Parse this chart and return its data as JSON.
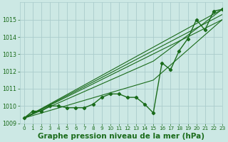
{
  "background_color": "#cce8e4",
  "grid_color": "#aacccc",
  "line_color": "#1a6b1a",
  "title": "Graphe pression niveau de la mer (hPa)",
  "title_fontsize": 7.5,
  "ylim": [
    1009,
    1016
  ],
  "xlim": [
    -0.5,
    23
  ],
  "yticks": [
    1009,
    1010,
    1011,
    1012,
    1013,
    1014,
    1015
  ],
  "xticks": [
    0,
    1,
    2,
    3,
    4,
    5,
    6,
    7,
    8,
    9,
    10,
    11,
    12,
    13,
    14,
    15,
    16,
    17,
    18,
    19,
    20,
    21,
    22,
    23
  ],
  "main_x": [
    0,
    1,
    2,
    3,
    4,
    5,
    6,
    7,
    8,
    9,
    10,
    11,
    12,
    13,
    14,
    15,
    16,
    17,
    18,
    19,
    20,
    21,
    22,
    23
  ],
  "main_y": [
    1009.3,
    1009.7,
    1009.7,
    1010.0,
    1010.0,
    1009.9,
    1009.9,
    1009.9,
    1010.1,
    1010.5,
    1010.7,
    1010.7,
    1010.5,
    1010.5,
    1010.1,
    1009.6,
    1012.5,
    1012.1,
    1013.2,
    1013.9,
    1015.0,
    1014.4,
    1015.5,
    1015.6
  ],
  "fan_lines": [
    {
      "x": [
        0,
        23
      ],
      "y": [
        1009.3,
        1015.6
      ]
    },
    {
      "x": [
        0,
        23
      ],
      "y": [
        1009.3,
        1015.3
      ]
    },
    {
      "x": [
        0,
        23
      ],
      "y": [
        1009.3,
        1015.0
      ]
    },
    {
      "x": [
        0,
        15,
        23
      ],
      "y": [
        1009.3,
        1012.6,
        1015.6
      ]
    },
    {
      "x": [
        0,
        15,
        23
      ],
      "y": [
        1009.3,
        1011.5,
        1015.0
      ]
    }
  ],
  "xtick_fontsize": 5.2,
  "ytick_fontsize": 5.8
}
